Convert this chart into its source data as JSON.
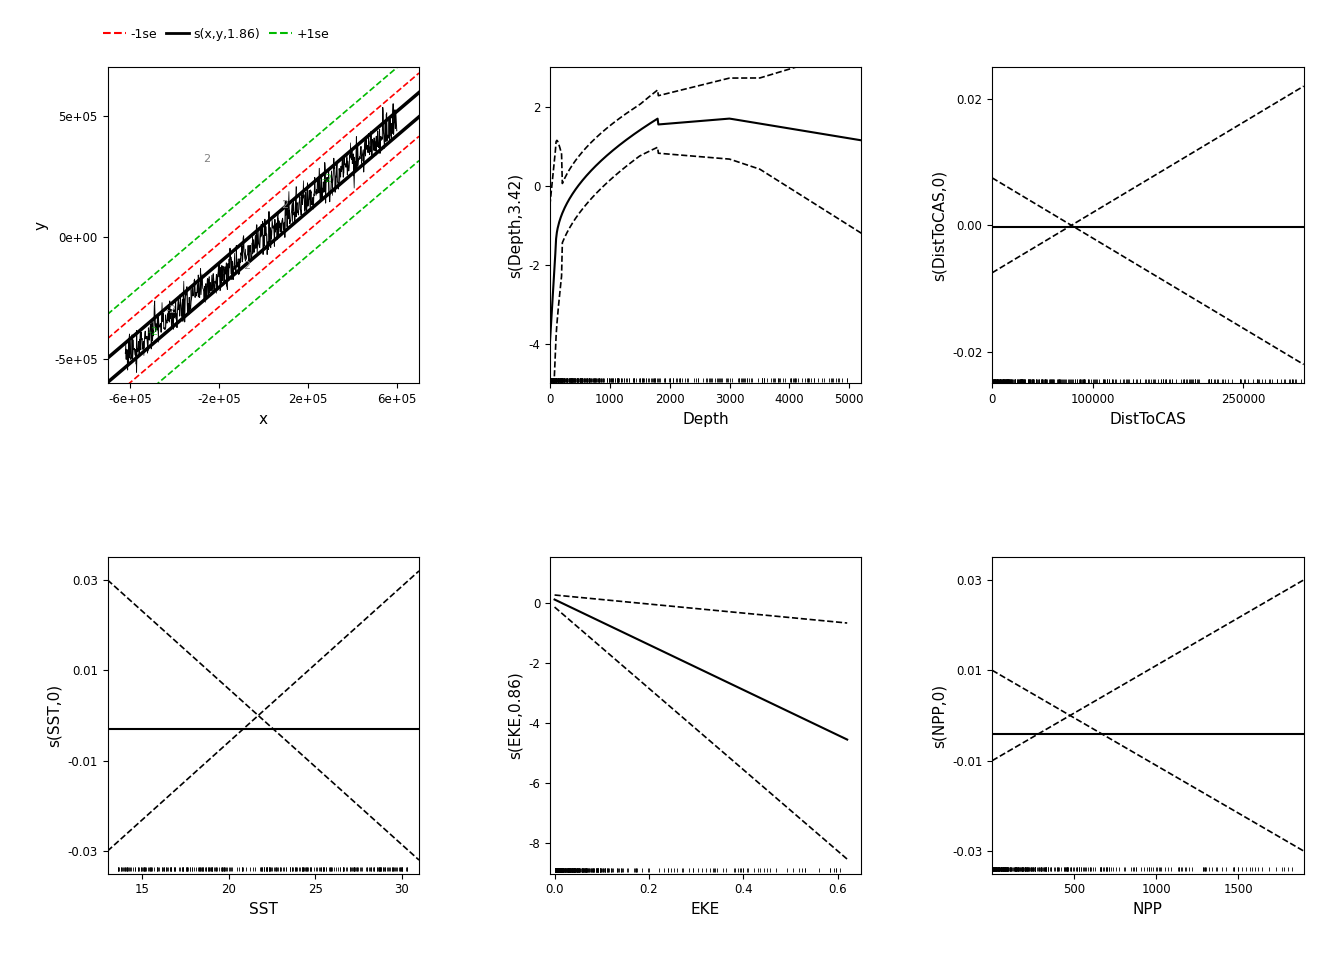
{
  "panel1": {
    "xlabel": "x",
    "ylabel": "y",
    "xlim": [
      -700000,
      700000
    ],
    "ylim": [
      -600000,
      700000
    ],
    "xticks": [
      -600000,
      -200000,
      200000,
      600000
    ],
    "yticks": [
      -500000,
      0,
      500000
    ],
    "xtick_labels": [
      "-6e+05",
      "-2e+05",
      "2e+05",
      "6e+05"
    ],
    "ytick_labels": [
      "-5e+05",
      "0e+00",
      "5e+05"
    ],
    "legend_labels": [
      "-1se",
      "s(x,y,1.86)",
      "+1se"
    ],
    "legend_colors": [
      "#FF0000",
      "#000000",
      "#00BB00"
    ],
    "legend_linestyles": [
      "--",
      "-",
      "--"
    ]
  },
  "panel2": {
    "xlabel": "Depth",
    "ylabel": "s(Depth,3.42)",
    "xlim": [
      0,
      5200
    ],
    "ylim": [
      -5,
      3
    ],
    "xticks": [
      0,
      1000,
      2000,
      3000,
      4000,
      5000
    ],
    "yticks": [
      -4,
      -2,
      0,
      2
    ]
  },
  "panel3": {
    "xlabel": "DistToCAS",
    "ylabel": "s(DistToCAS,0)",
    "xlim": [
      0,
      310000
    ],
    "ylim": [
      -0.025,
      0.025
    ],
    "xticks": [
      0,
      100000,
      250000
    ],
    "xtick_labels": [
      "0",
      "100000",
      "250000"
    ],
    "yticks": [
      -0.02,
      0.0,
      0.02
    ],
    "ytick_labels": [
      "-0.02",
      "0.00",
      "0.02"
    ]
  },
  "panel4": {
    "xlabel": "SST",
    "ylabel": "s(SST,0)",
    "xlim": [
      13,
      31
    ],
    "ylim": [
      -0.035,
      0.035
    ],
    "xticks": [
      15,
      20,
      25,
      30
    ],
    "yticks": [
      -0.03,
      -0.01,
      0.01,
      0.03
    ],
    "ytick_labels": [
      "-0.03",
      "-0.01",
      "0.01",
      "0.03"
    ]
  },
  "panel5": {
    "xlabel": "EKE",
    "ylabel": "s(EKE,0.86)",
    "xlim": [
      -0.01,
      0.65
    ],
    "ylim": [
      -9,
      1.5
    ],
    "xticks": [
      0.0,
      0.2,
      0.4,
      0.6
    ],
    "yticks": [
      -8,
      -6,
      -4,
      -2,
      0
    ]
  },
  "panel6": {
    "xlabel": "NPP",
    "ylabel": "s(NPP,0)",
    "xlim": [
      0,
      1900
    ],
    "ylim": [
      -0.035,
      0.035
    ],
    "xticks": [
      500,
      1000,
      1500
    ],
    "yticks": [
      -0.03,
      -0.01,
      0.01,
      0.03
    ],
    "ytick_labels": [
      "-0.03",
      "-0.01",
      "0.01",
      "0.03"
    ]
  }
}
